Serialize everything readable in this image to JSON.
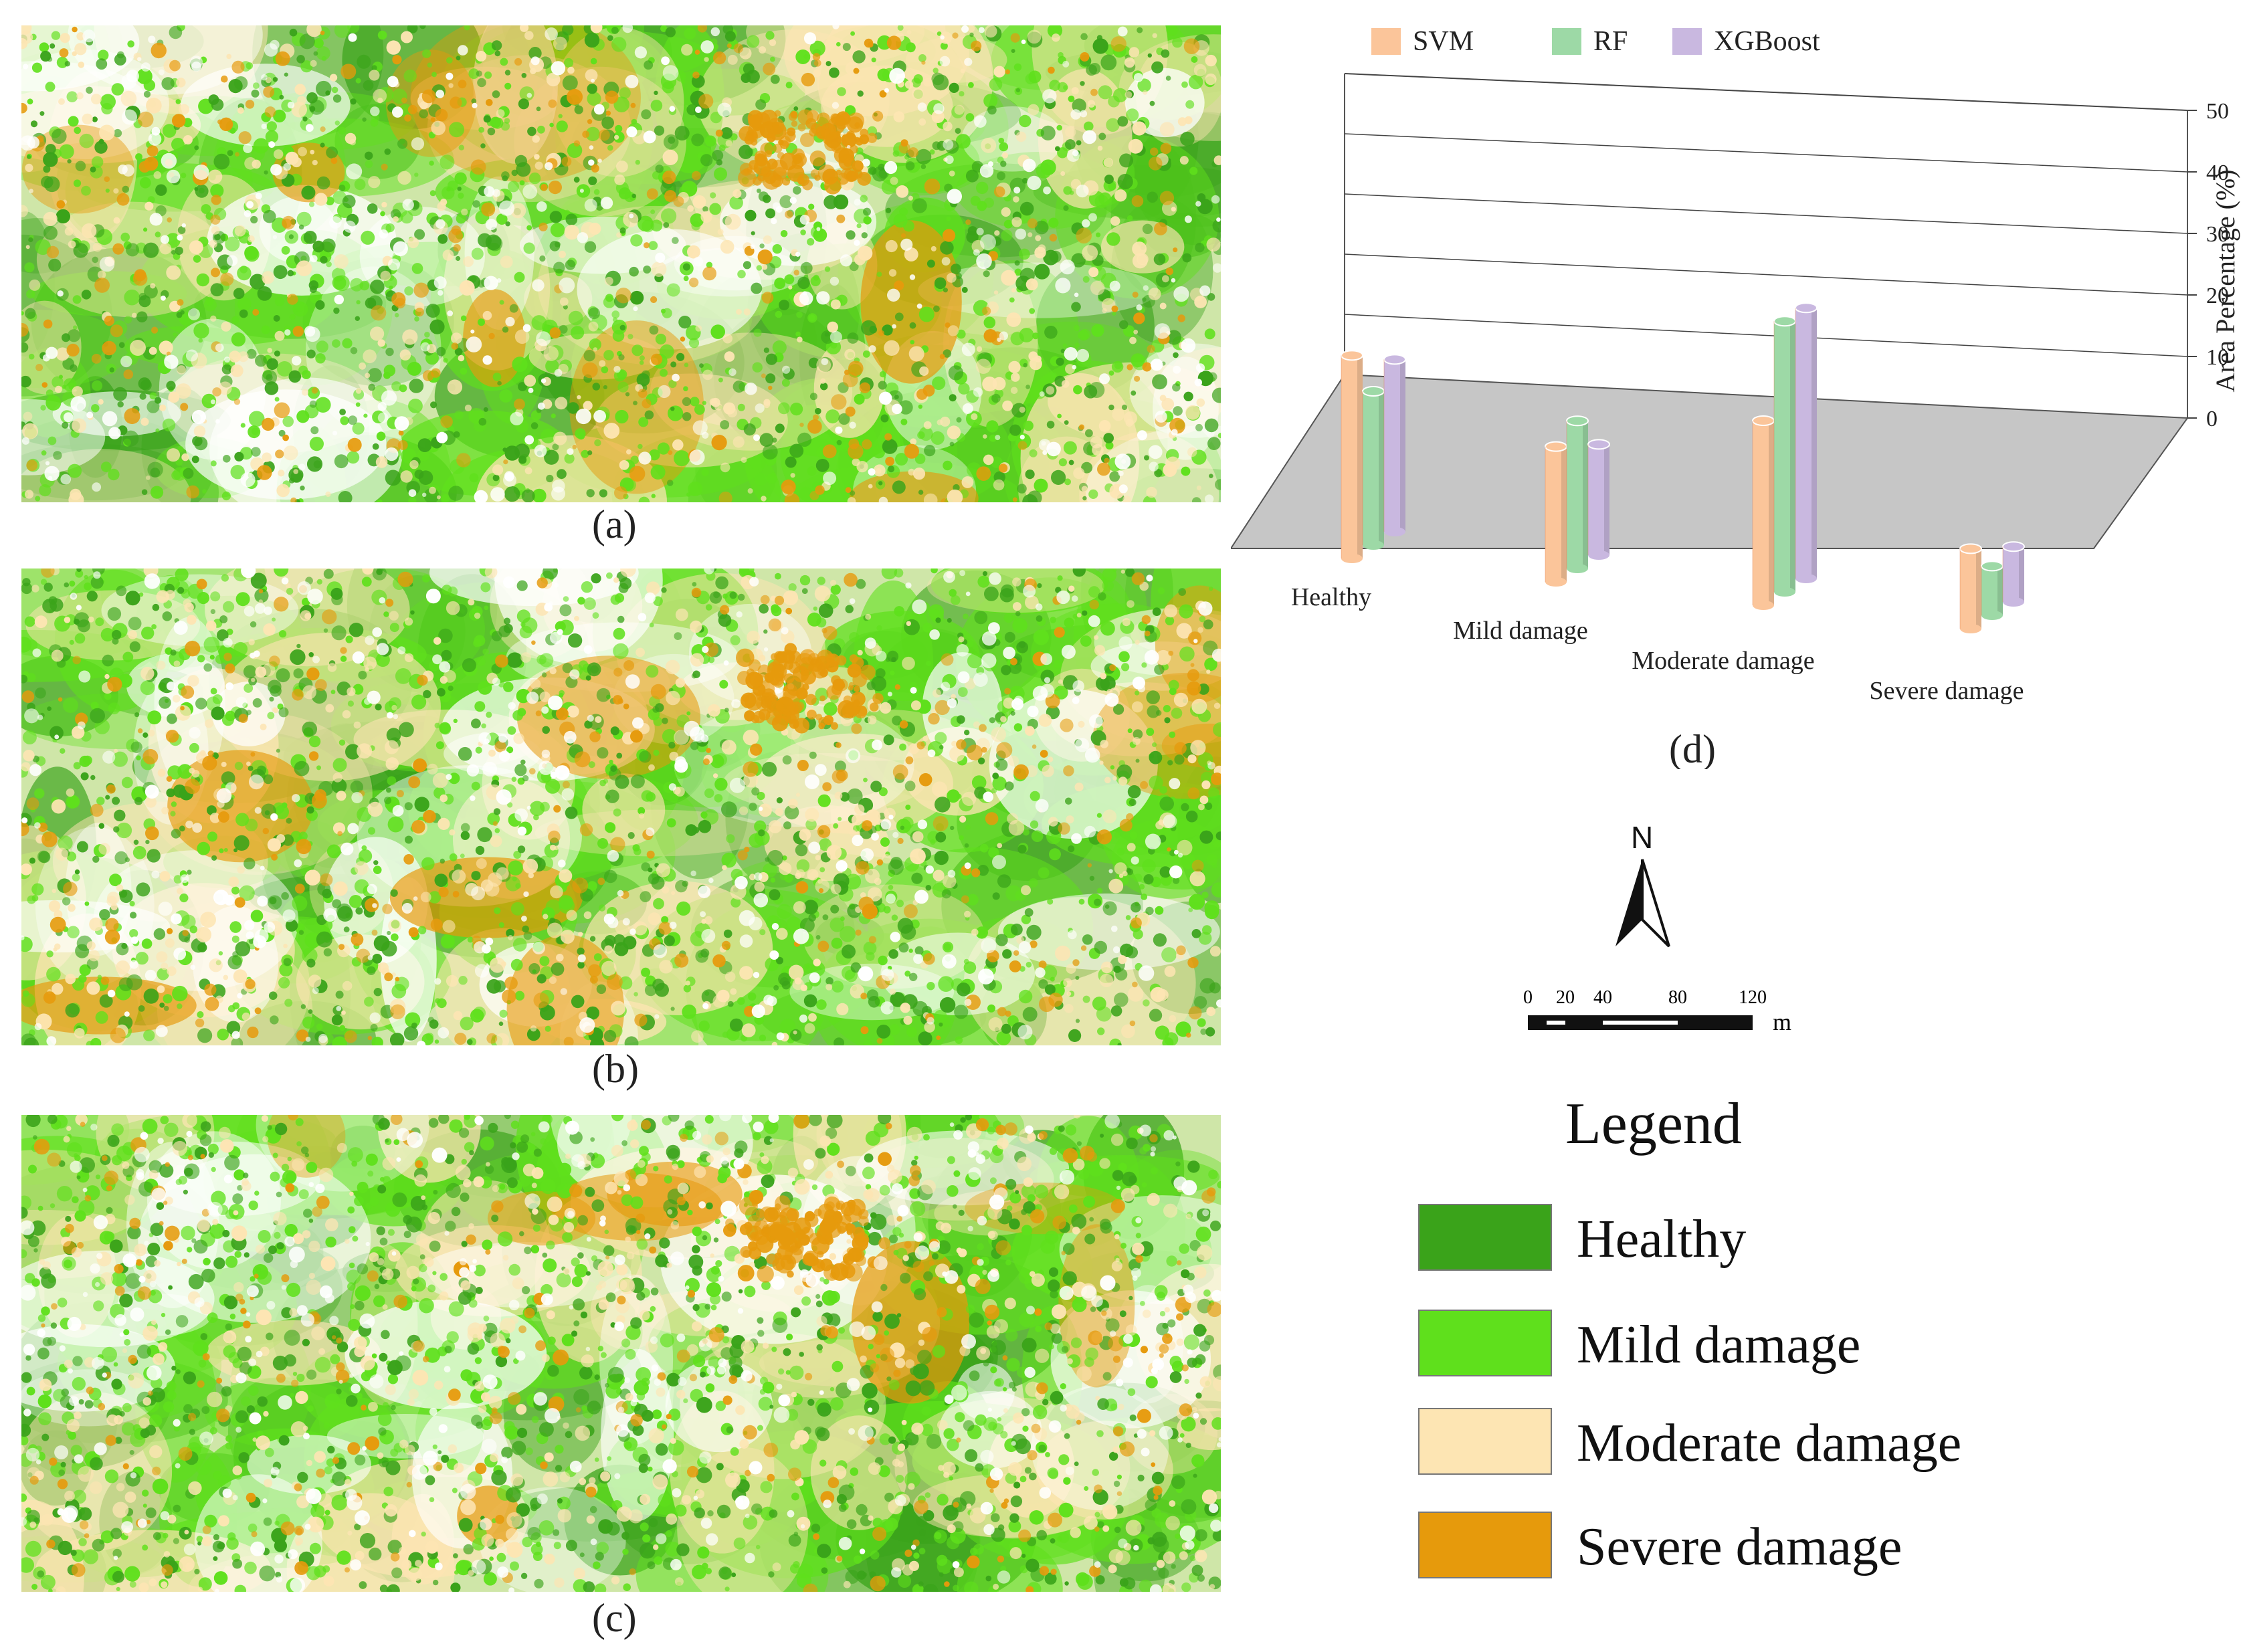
{
  "maps": [
    {
      "label": "(a)"
    },
    {
      "label": "(b)"
    },
    {
      "label": "(c)"
    }
  ],
  "class_colors": {
    "healthy": "#3aa31a",
    "mild": "#5fe01c",
    "moderate": "#fde5b3",
    "severe": "#e69a0c",
    "background": "#ffffff"
  },
  "chart_label": "(d)",
  "north_label": "N",
  "scale_bar": {
    "ticks": [
      "0",
      "20",
      "40",
      "80",
      "120"
    ],
    "unit": "m"
  },
  "legend": {
    "title": "Legend",
    "items": [
      {
        "label": "Healthy",
        "color": "#3aa31a"
      },
      {
        "label": "Mild damage",
        "color": "#5fe01c"
      },
      {
        "label": "Moderate damage",
        "color": "#fde5b3"
      },
      {
        "label": "Severe damage",
        "color": "#e69a0c"
      }
    ]
  },
  "chart_data": {
    "type": "bar",
    "categories": [
      "Healthy",
      "Mild damage",
      "Moderate damage",
      "Severe damage"
    ],
    "series": [
      {
        "name": "SVM",
        "values": [
          33,
          22,
          30,
          13
        ],
        "color": "#fbc59a"
      },
      {
        "name": "RF",
        "values": [
          25,
          24,
          44,
          8
        ],
        "color": "#9dd9a6"
      },
      {
        "name": "XGBoost",
        "values": [
          28,
          18,
          44,
          9
        ],
        "color": "#c9b8e0"
      }
    ],
    "ylabel": "Area Percentage (%)",
    "ylim": [
      0,
      50
    ],
    "yticks": [
      "0",
      "10",
      "20",
      "30",
      "40",
      "50"
    ],
    "legend_position": "top",
    "grid": true
  }
}
